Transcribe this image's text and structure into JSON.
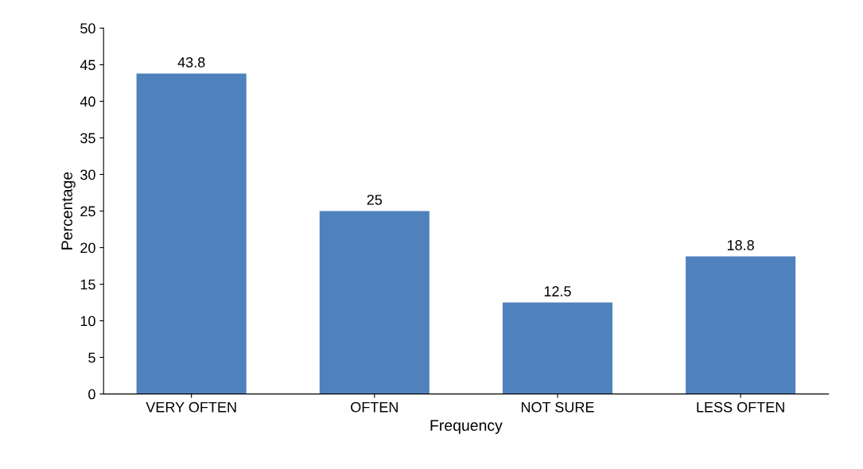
{
  "chart_data": {
    "type": "bar",
    "xlabel": "Frequency",
    "ylabel": "Percentage",
    "categories": [
      "VERY OFTEN",
      "OFTEN",
      "NOT SURE",
      "LESS OFTEN"
    ],
    "values": [
      43.8,
      25,
      12.5,
      18.8
    ],
    "color": "#4f81bd",
    "ylim": [
      0,
      50
    ],
    "yticks": [
      0,
      5,
      10,
      15,
      20,
      25,
      30,
      35,
      40,
      45,
      50
    ],
    "data_labels": true,
    "grid": false
  }
}
